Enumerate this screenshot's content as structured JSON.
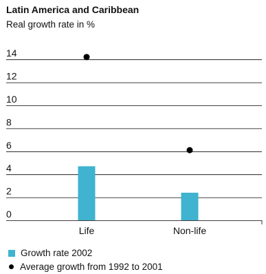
{
  "chart_data": {
    "type": "bar",
    "title": "Latin America and Caribbean",
    "subtitle": "Real growth rate in %",
    "categories": [
      "Life",
      "Non-life"
    ],
    "series": [
      {
        "name": "Growth rate 2002",
        "kind": "bar",
        "color": "#3fb3cf",
        "values": [
          4.7,
          2.4
        ]
      },
      {
        "name": "Average growth from 1992 to 2001",
        "kind": "dot",
        "color": "#000000",
        "values": [
          14.2,
          6.1
        ]
      }
    ],
    "y_ticks": [
      0,
      2,
      4,
      6,
      8,
      10,
      12,
      14
    ],
    "ylim": [
      0,
      16
    ],
    "grid": true,
    "legend_position": "bottom-left"
  }
}
